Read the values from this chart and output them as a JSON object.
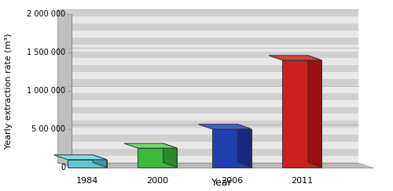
{
  "categories": [
    "1984",
    "2000",
    "2006",
    "2011"
  ],
  "values": [
    100000,
    250000,
    500000,
    1400000
  ],
  "bar_colors_front": [
    "#5bc8d8",
    "#3cb83c",
    "#2040b0",
    "#cc2020"
  ],
  "bar_colors_side": [
    "#3a9aaa",
    "#2a8a2a",
    "#162880",
    "#991010"
  ],
  "bar_colors_top": [
    "#80dce8",
    "#70d870",
    "#4060d0",
    "#e04040"
  ],
  "xlabel": "Year",
  "ylabel": "Yearly extraction rate (m³)",
  "ylim": [
    0,
    2000000
  ],
  "yticks": [
    0,
    500000,
    1000000,
    1500000,
    2000000
  ],
  "ytick_labels": [
    "0",
    "5 00 000",
    "1 000 000",
    "1 500 000",
    "2 000 000"
  ],
  "floor_color": "#b8b8b8",
  "wall_color": "#d0d0d0",
  "stripe_color": "#e8e8e8",
  "axis_fontsize": 8,
  "xlabel_fontsize": 9
}
